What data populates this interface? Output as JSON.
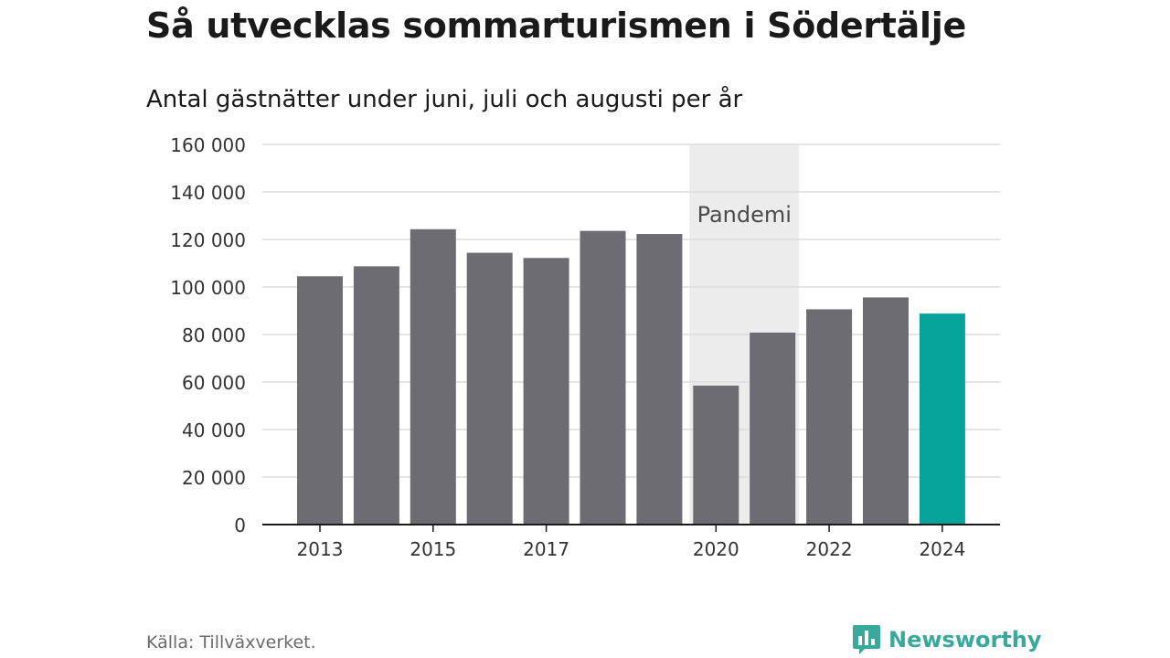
{
  "header": {
    "title": "Så utvecklas sommarturismen i Södertälje",
    "subtitle": "Antal gästnätter under juni, juli och augusti per år"
  },
  "footer": {
    "source": "Källa: Tillväxverket.",
    "brand": "Newsworthy",
    "brand_icon": "newsworthy-logo-icon"
  },
  "colors": {
    "bar": "#6d6c72",
    "highlight": "#05a39a",
    "band": "#ececec",
    "grid": "#dcdcdc",
    "axis": "#1a1a1a",
    "text": "#333333",
    "brand": "#3aa89b"
  },
  "chart_data": {
    "type": "bar",
    "title": "Så utvecklas sommarturismen i Södertälje",
    "subtitle": "Antal gästnätter under juni, juli och augusti per år",
    "categories": [
      "2013",
      "2014",
      "2015",
      "2016",
      "2017",
      "2018",
      "2019",
      "2020",
      "2021",
      "2022",
      "2023",
      "2024"
    ],
    "values": [
      104500,
      108700,
      124300,
      114400,
      112200,
      123600,
      122300,
      58500,
      80800,
      90600,
      95600,
      88800
    ],
    "highlight": "2024",
    "x_tick_labels": [
      "2013",
      "2015",
      "2017",
      "2020",
      "2022",
      "2024"
    ],
    "y_ticks": [
      0,
      20000,
      40000,
      60000,
      80000,
      100000,
      120000,
      140000,
      160000
    ],
    "y_tick_labels": [
      "0",
      "20 000",
      "40 000",
      "60 000",
      "80 000",
      "100 000",
      "120 000",
      "140 000",
      "160 000"
    ],
    "ylim": [
      0,
      160000
    ],
    "grid": true,
    "annotation": {
      "label": "Pandemi",
      "from": "2020",
      "to": "2021"
    }
  }
}
